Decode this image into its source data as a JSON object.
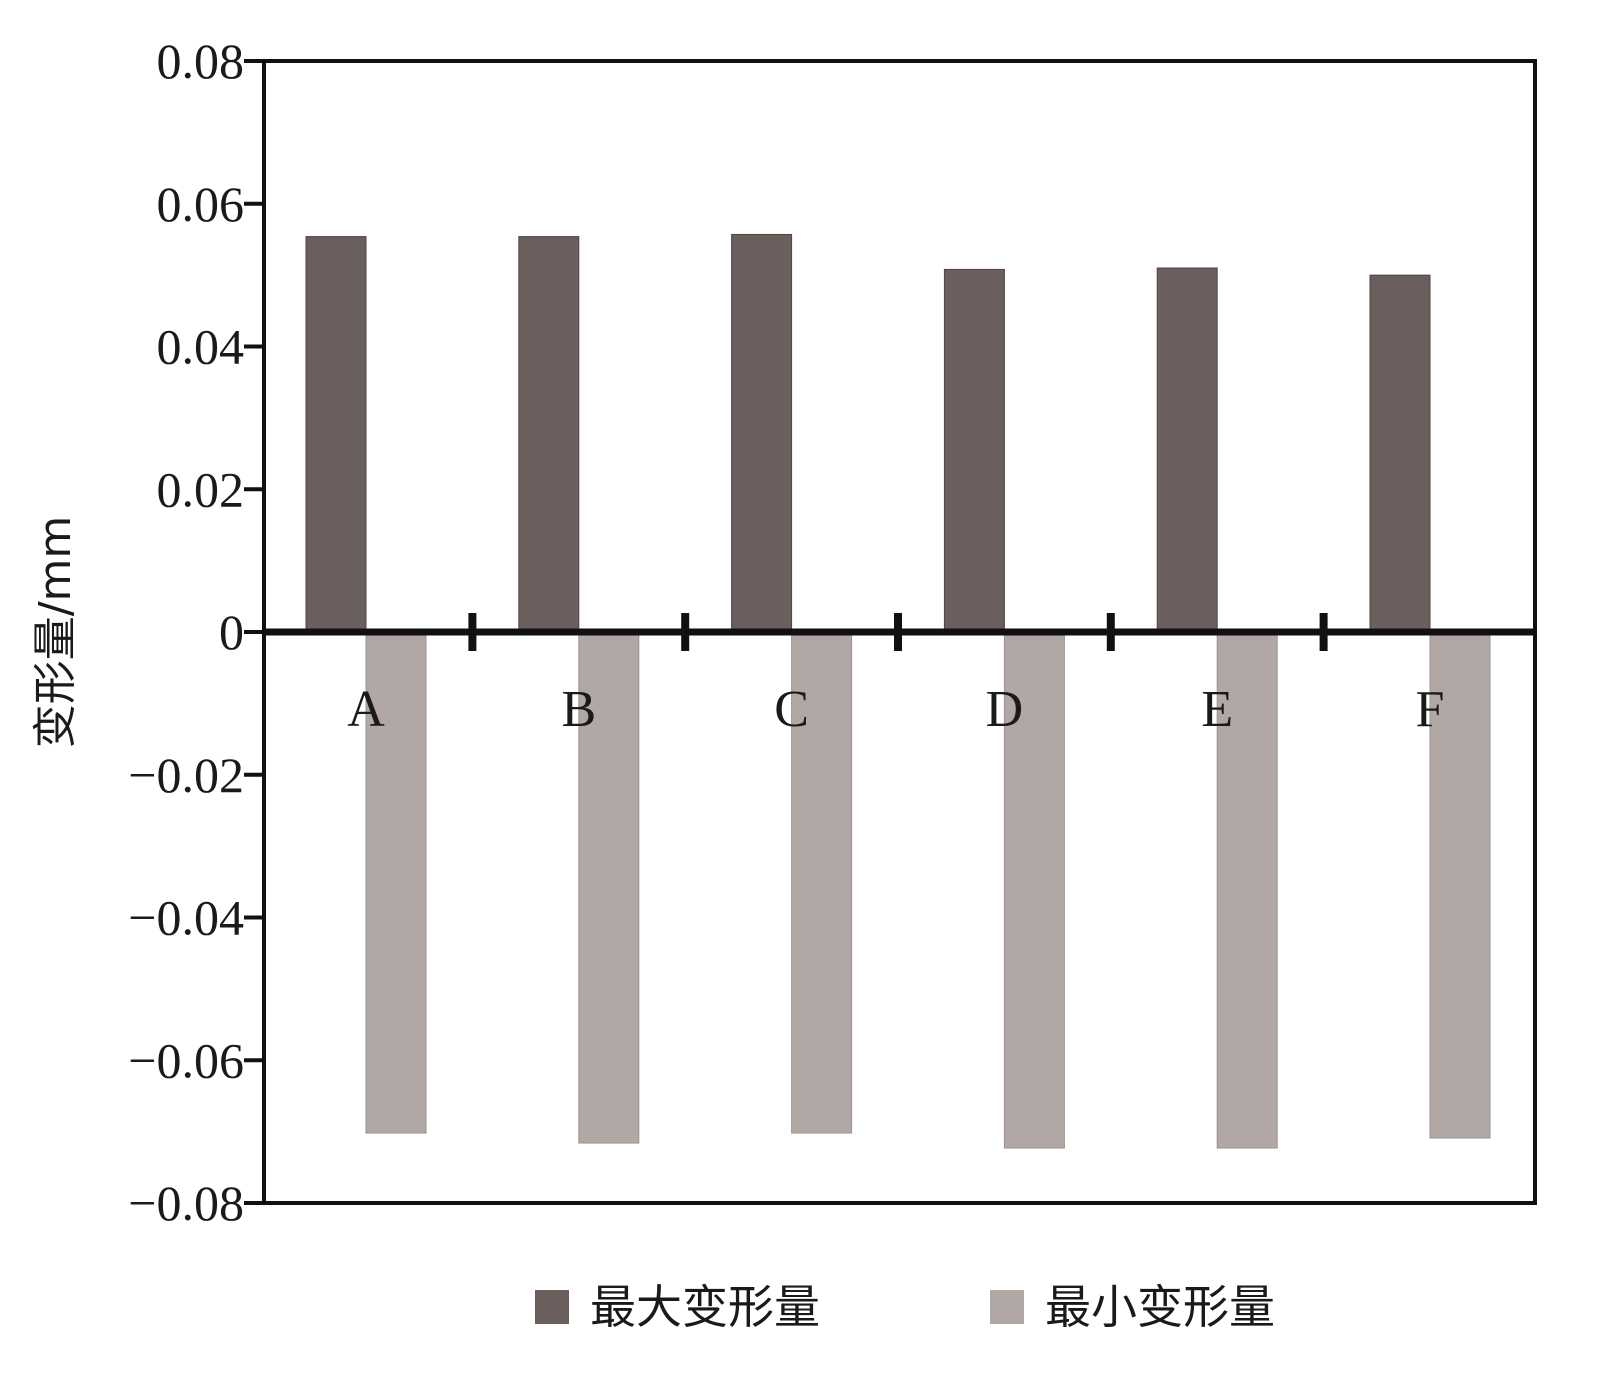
{
  "chart_data": {
    "type": "bar",
    "categories": [
      "A",
      "B",
      "C",
      "D",
      "E",
      "F"
    ],
    "series": [
      {
        "name": "最大变形量",
        "color": "#6a5f5c",
        "values": [
          0.0554,
          0.0554,
          0.0557,
          0.0508,
          0.051,
          0.05
        ]
      },
      {
        "name": "最小变形量",
        "color": "#b1a8a5",
        "values": [
          -0.0702,
          -0.0716,
          -0.0702,
          -0.0723,
          -0.0723,
          -0.0709
        ]
      }
    ],
    "ylabel": "变形量/mm",
    "xlabel": "",
    "ylim": [
      -0.08,
      0.08
    ],
    "yticks": [
      0.08,
      0.06,
      0.04,
      0.02,
      0,
      -0.02,
      -0.04,
      -0.06,
      -0.08
    ],
    "ytick_labels": [
      "0.08",
      "0.06",
      "0.04",
      "0.02",
      "0",
      "−0.02",
      "−0.04",
      "−0.06",
      "−0.08"
    ],
    "grid": false,
    "legend_position": "bottom"
  }
}
